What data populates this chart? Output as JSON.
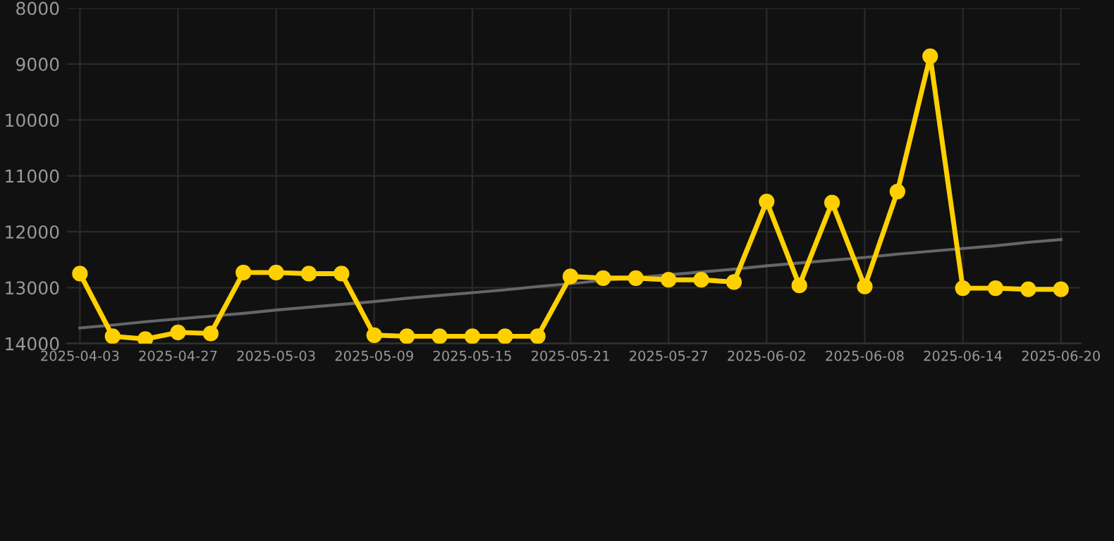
{
  "chart_data": {
    "type": "line",
    "categories": [
      "2025-04-03",
      null,
      null,
      "2025-04-27",
      null,
      null,
      "2025-05-03",
      null,
      null,
      "2025-05-09",
      null,
      null,
      "2025-05-15",
      null,
      null,
      "2025-05-21",
      null,
      null,
      "2025-05-27",
      null,
      null,
      "2025-06-02",
      null,
      null,
      "2025-06-08",
      null,
      null,
      "2025-06-14",
      null,
      null,
      "2025-06-20"
    ],
    "series": [
      {
        "color": "#ffd000",
        "marker": "circle",
        "values": [
          12750,
          13870,
          13920,
          13800,
          13820,
          12730,
          12730,
          12750,
          12750,
          13850,
          13870,
          13870,
          13870,
          13870,
          13870,
          12800,
          12830,
          12830,
          12860,
          12860,
          12900,
          11460,
          12960,
          11480,
          12980,
          11280,
          8860,
          13010,
          13010,
          13030,
          13030
        ]
      },
      {
        "type": "line",
        "color": "#666666",
        "marker": "none",
        "values": [
          13720,
          13670,
          13610,
          13560,
          13510,
          13460,
          13400,
          13350,
          13300,
          13250,
          13190,
          13140,
          13090,
          13040,
          12980,
          12930,
          12870,
          12820,
          12770,
          12720,
          12670,
          12610,
          12560,
          12510,
          12460,
          12400,
          12350,
          12300,
          12250,
          12190,
          12140
        ]
      }
    ],
    "ylim": [
      14000,
      8000
    ],
    "yticks": [
      8000,
      9000,
      10000,
      11000,
      12000,
      13000,
      14000
    ],
    "grid": true,
    "line_style": "solid"
  }
}
